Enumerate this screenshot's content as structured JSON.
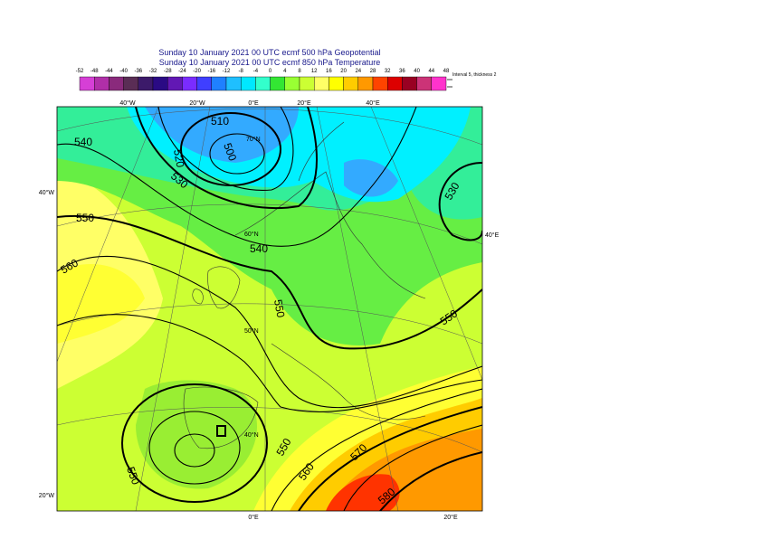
{
  "header": {
    "line1": "Sunday 10 January 2021 00 UTC ecmf 500 hPa Geopotential",
    "line2": "Sunday 10 January 2021 00 UTC ecmf 850 hPa Temperature"
  },
  "colorbar": {
    "ticks": [
      -52,
      -48,
      -44,
      -40,
      -36,
      -32,
      -28,
      -24,
      -20,
      -16,
      -12,
      -8,
      -4,
      0,
      4,
      8,
      12,
      16,
      20,
      24,
      28,
      32,
      36,
      40,
      44,
      48
    ],
    "colors": [
      "#d63fd6",
      "#b02fa8",
      "#8a2a7c",
      "#5a2d55",
      "#3c1a6a",
      "#2a0a84",
      "#6218b4",
      "#7a2cff",
      "#3f3fff",
      "#1f80ff",
      "#1fbfff",
      "#00e8ff",
      "#33ffcc",
      "#33e633",
      "#99ff33",
      "#ccff33",
      "#ffff66",
      "#ffff00",
      "#ffcc00",
      "#ff9900",
      "#ff4400",
      "#dd0000",
      "#990022",
      "#cc3377",
      "#ff33cc",
      "#ff99ee",
      "#ffccf5"
    ],
    "note": "Interval 5, thickness 2"
  },
  "map": {
    "graticule_labels": [
      "40°W",
      "20°W",
      "0°E",
      "20°E",
      "40°E",
      "40°W",
      "20°W",
      "40°E",
      "0°E",
      "20°E",
      "70°N",
      "60°N",
      "50°N",
      "40°N"
    ],
    "contour_labels": [
      "540",
      "510",
      "520",
      "500",
      "530",
      "550",
      "540",
      "560",
      "530",
      "550",
      "550",
      "550",
      "560",
      "570",
      "580",
      "550"
    ]
  }
}
